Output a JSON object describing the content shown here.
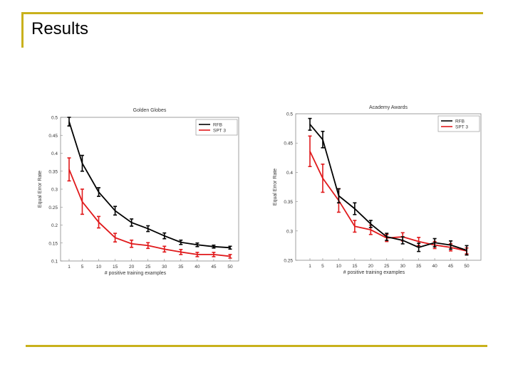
{
  "slide": {
    "title": "Results",
    "accent_color": "#c9b11c"
  },
  "chart_data": [
    {
      "type": "line",
      "title": "Golden Globes",
      "xlabel": "# positive training examples",
      "ylabel": "Equal Error Rate",
      "x": [
        1,
        5,
        10,
        15,
        20,
        25,
        30,
        35,
        40,
        45,
        50
      ],
      "xticks": [
        "1",
        "5",
        "10",
        "15",
        "20",
        "25",
        "30",
        "35",
        "40",
        "45",
        "50"
      ],
      "yticks": [
        "0.1",
        "0.15",
        "0.2",
        "0.25",
        "0.3",
        "0.35",
        "0.4",
        "0.45",
        "0.5"
      ],
      "ylim": [
        0.1,
        0.5
      ],
      "legend_position": "top-right",
      "series": [
        {
          "name": "RFB",
          "color": "#000000",
          "values": [
            0.488,
            0.372,
            0.292,
            0.24,
            0.207,
            0.19,
            0.17,
            0.152,
            0.145,
            0.14,
            0.137
          ],
          "errors": [
            0.012,
            0.022,
            0.012,
            0.012,
            0.01,
            0.008,
            0.008,
            0.006,
            0.005,
            0.004,
            0.004
          ]
        },
        {
          "name": "SPT 3",
          "color": "#e0191b",
          "values": [
            0.355,
            0.265,
            0.208,
            0.165,
            0.148,
            0.143,
            0.133,
            0.125,
            0.118,
            0.118,
            0.113
          ],
          "errors": [
            0.032,
            0.035,
            0.016,
            0.012,
            0.01,
            0.008,
            0.008,
            0.007,
            0.006,
            0.006,
            0.005
          ]
        }
      ]
    },
    {
      "type": "line",
      "title": "Academy Awards",
      "xlabel": "# positive training examples",
      "ylabel": "Equal Error Rate",
      "x": [
        1,
        5,
        10,
        15,
        20,
        25,
        30,
        35,
        40,
        45,
        50
      ],
      "xticks": [
        "1",
        "5",
        "10",
        "15",
        "20",
        "25",
        "30",
        "35",
        "40",
        "45",
        "50"
      ],
      "yticks": [
        "0.25",
        "0.3",
        "0.35",
        "0.4",
        "0.45",
        "0.5"
      ],
      "ylim": [
        0.25,
        0.5
      ],
      "legend_position": "top-right",
      "series": [
        {
          "name": "RFB",
          "color": "#000000",
          "values": [
            0.482,
            0.456,
            0.36,
            0.338,
            0.312,
            0.29,
            0.284,
            0.272,
            0.28,
            0.276,
            0.267
          ],
          "errors": [
            0.01,
            0.014,
            0.012,
            0.01,
            0.006,
            0.006,
            0.006,
            0.007,
            0.007,
            0.007,
            0.008
          ]
        },
        {
          "name": "SPT 3",
          "color": "#e0191b",
          "values": [
            0.436,
            0.39,
            0.352,
            0.308,
            0.302,
            0.288,
            0.29,
            0.282,
            0.276,
            0.272,
            0.266
          ],
          "errors": [
            0.026,
            0.024,
            0.02,
            0.01,
            0.008,
            0.006,
            0.007,
            0.007,
            0.006,
            0.006,
            0.005
          ]
        }
      ]
    }
  ]
}
